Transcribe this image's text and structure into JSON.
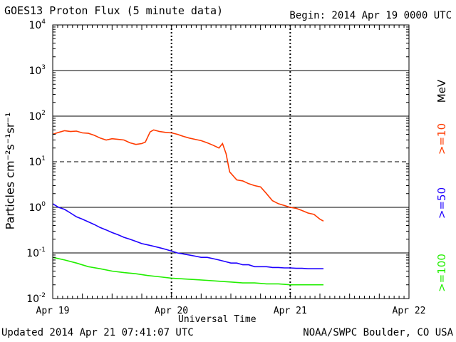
{
  "header": {
    "title": "GOES13 Proton Flux (5 minute data)",
    "begin": "Begin: 2014 Apr 19 0000 UTC"
  },
  "footer": {
    "updated": "Updated 2014 Apr 21 07:41:07 UTC",
    "credit": "NOAA/SWPC Boulder, CO USA"
  },
  "legend": {
    "unit": "MeV",
    "labels": [
      ">=10",
      ">=50",
      ">=100"
    ]
  },
  "colors": {
    "s10": "#ff3b00",
    "s50": "#1e00ff",
    "s100": "#22ee00",
    "grid": "#000000"
  },
  "chart_data": {
    "type": "line",
    "title": "GOES13 Proton Flux (5 minute data)",
    "xlabel": "Universal Time",
    "ylabel": "Particles cm⁻²s⁻¹sr⁻¹",
    "yscale": "log",
    "ylim": [
      0.01,
      10000
    ],
    "y_ticks": [
      {
        "value": 10000,
        "base": "10",
        "exp": "4"
      },
      {
        "value": 1000,
        "base": "10",
        "exp": "3"
      },
      {
        "value": 100,
        "base": "10",
        "exp": "2"
      },
      {
        "value": 10,
        "base": "10",
        "exp": "1"
      },
      {
        "value": 1,
        "base": "10",
        "exp": "0"
      },
      {
        "value": 0.1,
        "base": "10",
        "exp": "-1"
      },
      {
        "value": 0.01,
        "base": "10",
        "exp": "-2"
      }
    ],
    "xlim_days": [
      0,
      3
    ],
    "x_ticks": [
      {
        "day": 0,
        "label": "Apr 19"
      },
      {
        "day": 1,
        "label": "Apr 20"
      },
      {
        "day": 2,
        "label": "Apr 21"
      },
      {
        "day": 3,
        "label": "Apr 22"
      }
    ],
    "thresholds": [
      10,
      100
    ],
    "series": [
      {
        "name": ">=10",
        "color": "#ff3b00",
        "points": [
          [
            0.0,
            40
          ],
          [
            0.05,
            44
          ],
          [
            0.1,
            48
          ],
          [
            0.15,
            46
          ],
          [
            0.2,
            47
          ],
          [
            0.25,
            43
          ],
          [
            0.3,
            42
          ],
          [
            0.35,
            38
          ],
          [
            0.4,
            33
          ],
          [
            0.45,
            30
          ],
          [
            0.5,
            32
          ],
          [
            0.55,
            31
          ],
          [
            0.6,
            30
          ],
          [
            0.65,
            26
          ],
          [
            0.7,
            24
          ],
          [
            0.75,
            25
          ],
          [
            0.78,
            27
          ],
          [
            0.82,
            45
          ],
          [
            0.85,
            50
          ],
          [
            0.9,
            46
          ],
          [
            0.95,
            44
          ],
          [
            1.0,
            43
          ],
          [
            1.05,
            40
          ],
          [
            1.1,
            36
          ],
          [
            1.15,
            33
          ],
          [
            1.2,
            31
          ],
          [
            1.25,
            29
          ],
          [
            1.3,
            26
          ],
          [
            1.35,
            23
          ],
          [
            1.4,
            20
          ],
          [
            1.43,
            25
          ],
          [
            1.46,
            15
          ],
          [
            1.49,
            6
          ],
          [
            1.55,
            4
          ],
          [
            1.6,
            3.8
          ],
          [
            1.65,
            3.3
          ],
          [
            1.7,
            3.0
          ],
          [
            1.75,
            2.8
          ],
          [
            1.8,
            2.0
          ],
          [
            1.85,
            1.4
          ],
          [
            1.9,
            1.2
          ],
          [
            1.95,
            1.1
          ],
          [
            2.0,
            1.0
          ],
          [
            2.05,
            0.95
          ],
          [
            2.1,
            0.85
          ],
          [
            2.15,
            0.75
          ],
          [
            2.2,
            0.7
          ],
          [
            2.25,
            0.55
          ],
          [
            2.28,
            0.5
          ]
        ]
      },
      {
        "name": ">=50",
        "color": "#1e00ff",
        "points": [
          [
            0.0,
            1.2
          ],
          [
            0.05,
            1.0
          ],
          [
            0.1,
            0.9
          ],
          [
            0.15,
            0.75
          ],
          [
            0.2,
            0.62
          ],
          [
            0.25,
            0.55
          ],
          [
            0.3,
            0.48
          ],
          [
            0.35,
            0.42
          ],
          [
            0.4,
            0.36
          ],
          [
            0.45,
            0.32
          ],
          [
            0.5,
            0.28
          ],
          [
            0.55,
            0.25
          ],
          [
            0.6,
            0.22
          ],
          [
            0.65,
            0.2
          ],
          [
            0.7,
            0.18
          ],
          [
            0.75,
            0.16
          ],
          [
            0.8,
            0.15
          ],
          [
            0.85,
            0.14
          ],
          [
            0.9,
            0.13
          ],
          [
            0.95,
            0.12
          ],
          [
            1.0,
            0.11
          ],
          [
            1.05,
            0.1
          ],
          [
            1.1,
            0.095
          ],
          [
            1.15,
            0.09
          ],
          [
            1.2,
            0.085
          ],
          [
            1.25,
            0.08
          ],
          [
            1.3,
            0.08
          ],
          [
            1.35,
            0.075
          ],
          [
            1.4,
            0.07
          ],
          [
            1.45,
            0.065
          ],
          [
            1.5,
            0.06
          ],
          [
            1.55,
            0.06
          ],
          [
            1.6,
            0.055
          ],
          [
            1.65,
            0.055
          ],
          [
            1.7,
            0.05
          ],
          [
            1.75,
            0.05
          ],
          [
            1.8,
            0.05
          ],
          [
            1.85,
            0.048
          ],
          [
            1.9,
            0.048
          ],
          [
            1.95,
            0.047
          ],
          [
            2.0,
            0.047
          ],
          [
            2.05,
            0.046
          ],
          [
            2.1,
            0.046
          ],
          [
            2.15,
            0.045
          ],
          [
            2.2,
            0.045
          ],
          [
            2.25,
            0.045
          ],
          [
            2.28,
            0.045
          ]
        ]
      },
      {
        "name": ">=100",
        "color": "#22ee00",
        "points": [
          [
            0.0,
            0.08
          ],
          [
            0.1,
            0.07
          ],
          [
            0.2,
            0.06
          ],
          [
            0.3,
            0.05
          ],
          [
            0.4,
            0.045
          ],
          [
            0.5,
            0.04
          ],
          [
            0.6,
            0.037
          ],
          [
            0.7,
            0.035
          ],
          [
            0.8,
            0.032
          ],
          [
            0.9,
            0.03
          ],
          [
            1.0,
            0.028
          ],
          [
            1.1,
            0.027
          ],
          [
            1.2,
            0.026
          ],
          [
            1.3,
            0.025
          ],
          [
            1.4,
            0.024
          ],
          [
            1.5,
            0.023
          ],
          [
            1.6,
            0.022
          ],
          [
            1.7,
            0.022
          ],
          [
            1.8,
            0.021
          ],
          [
            1.9,
            0.021
          ],
          [
            2.0,
            0.02
          ],
          [
            2.1,
            0.02
          ],
          [
            2.2,
            0.02
          ],
          [
            2.28,
            0.02
          ]
        ]
      }
    ]
  }
}
